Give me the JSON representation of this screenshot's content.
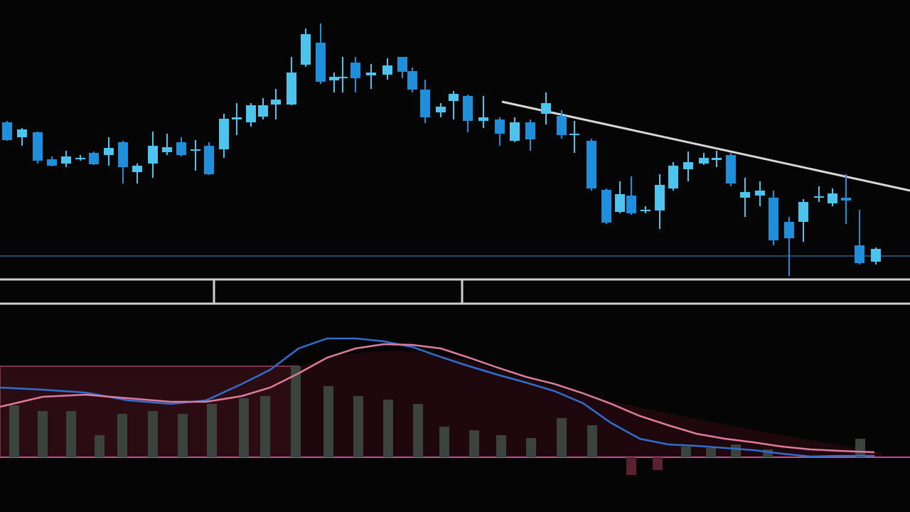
{
  "chart_data": [
    {
      "type": "candlestick",
      "color_up": "#4cc4ee",
      "color_down": "#1f8fdc",
      "xlim": [
        0,
        1280
      ],
      "ylim": [
        10,
        400
      ],
      "x": [
        10,
        31,
        53,
        73,
        93,
        113,
        132,
        153,
        173,
        193,
        215,
        235,
        255,
        275,
        294,
        315,
        333,
        353,
        370,
        388,
        410,
        430,
        451,
        470,
        482,
        500,
        522,
        545,
        566,
        580,
        598,
        620,
        638,
        658,
        680,
        703,
        724,
        746,
        768,
        790,
        808,
        832,
        853,
        872,
        888,
        908,
        928,
        947,
        968,
        990,
        1008,
        1028,
        1048,
        1069,
        1088,
        1110,
        1130,
        1152,
        1171,
        1190,
        1209,
        1232
      ],
      "open": [
        228,
        207,
        214,
        176,
        170,
        176,
        185,
        182,
        200,
        158,
        170,
        186,
        200,
        188,
        195,
        190,
        232,
        228,
        236,
        253,
        253,
        309,
        340,
        287,
        290,
        312,
        294,
        295,
        320,
        300,
        274,
        242,
        258,
        265,
        230,
        232,
        202,
        228,
        240,
        237,
        210,
        202,
        133,
        102,
        125,
        103,
        104,
        135,
        162,
        170,
        175,
        182,
        122,
        125,
        122,
        88,
        88,
        122,
        114,
        122,
        55,
        32
      ],
      "high": [
        230,
        220,
        215,
        180,
        188,
        182,
        187,
        207,
        202,
        170,
        215,
        212,
        207,
        203,
        200,
        240,
        255,
        255,
        262,
        275,
        320,
        360,
        367,
        298,
        320,
        320,
        310,
        318,
        320,
        305,
        288,
        255,
        272,
        267,
        265,
        235,
        235,
        232,
        270,
        245,
        230,
        205,
        135,
        145,
        152,
        110,
        155,
        172,
        187,
        185,
        188,
        185,
        150,
        145,
        132,
        95,
        120,
        138,
        135,
        155,
        105,
        52
      ],
      "low": [
        202,
        195,
        170,
        166,
        165,
        174,
        168,
        167,
        142,
        142,
        150,
        182,
        180,
        160,
        154,
        178,
        210,
        222,
        232,
        232,
        252,
        306,
        282,
        270,
        270,
        270,
        275,
        288,
        290,
        270,
        227,
        235,
        232,
        214,
        220,
        195,
        200,
        188,
        225,
        205,
        185,
        132,
        85,
        100,
        98,
        100,
        78,
        132,
        145,
        168,
        165,
        138,
        95,
        110,
        55,
        12,
        60,
        116,
        110,
        85,
        28,
        28
      ],
      "close": [
        203,
        218,
        174,
        167,
        180,
        178,
        169,
        192,
        165,
        167,
        195,
        193,
        182,
        190,
        155,
        233,
        235,
        252,
        252,
        260,
        298,
        352,
        285,
        292,
        292,
        290,
        298,
        308,
        299,
        274,
        235,
        250,
        268,
        230,
        235,
        212,
        228,
        204,
        255,
        210,
        212,
        135,
        87,
        127,
        100,
        105,
        140,
        167,
        172,
        178,
        178,
        142,
        130,
        132,
        62,
        65,
        116,
        124,
        128,
        118,
        30,
        50
      ]
    },
    {
      "type": "line",
      "xlim": [
        0,
        1280
      ],
      "ylim": [
        -57,
        213
      ],
      "x": [
        0,
        60,
        120,
        180,
        240,
        290,
        340,
        380,
        420,
        460,
        500,
        540,
        580,
        620,
        660,
        700,
        740,
        780,
        820,
        860,
        900,
        940,
        980,
        1020,
        1060,
        1100,
        1140,
        1180,
        1230
      ],
      "series": [
        {
          "color": "#2f6fd0",
          "values": [
            98,
            95,
            91,
            80,
            75,
            80,
            103,
            123,
            153,
            167,
            167,
            163,
            155,
            141,
            128,
            116,
            105,
            93,
            76,
            48,
            26,
            18,
            16,
            13,
            10,
            5,
            1,
            2,
            2
          ]
        },
        {
          "color": "#e07ba0",
          "values": [
            71,
            85,
            88,
            83,
            78,
            78,
            86,
            98,
            118,
            140,
            153,
            159,
            158,
            153,
            140,
            126,
            113,
            103,
            90,
            75,
            58,
            45,
            33,
            26,
            21,
            15,
            11,
            9,
            7
          ]
        }
      ]
    },
    {
      "type": "bar",
      "xlim": [
        0,
        1280
      ],
      "ylim": [
        -57,
        213
      ],
      "color": "#3a433d",
      "negative_color": "#5a2030",
      "x": [
        20,
        60,
        100,
        140,
        172,
        215,
        257,
        298,
        343,
        373,
        416,
        462,
        504,
        546,
        588,
        625,
        667,
        705,
        747,
        790,
        833,
        888,
        925,
        965,
        1000,
        1035,
        1080,
        1210
      ],
      "values": [
        73,
        65,
        65,
        31,
        61,
        65,
        61,
        75,
        83,
        86,
        128,
        100,
        86,
        81,
        75,
        43,
        38,
        31,
        27,
        55,
        45,
        -25,
        -18,
        15,
        13,
        18,
        11,
        26
      ]
    }
  ]
}
